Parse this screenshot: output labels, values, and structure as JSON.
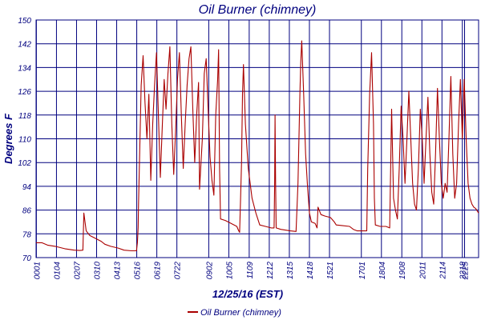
{
  "chart_data": {
    "type": "line",
    "title": "Oil Burner (chimney)",
    "xlabel": "12/25/16 (EST)",
    "ylabel": "Degrees F",
    "ylim": [
      70,
      150
    ],
    "yticks": [
      70,
      78,
      86,
      94,
      102,
      110,
      118,
      126,
      134,
      142,
      150
    ],
    "xticks": [
      "00:01",
      "01:04",
      "02:07",
      "03:10",
      "04:13",
      "05:16",
      "06:19",
      "07:22",
      "09:02",
      "10:05",
      "11:09",
      "12:12",
      "13:15",
      "14:18",
      "15:21",
      "17:01",
      "18:04",
      "19:08",
      "20:11",
      "21:14",
      "22:18",
      "22:25"
    ],
    "tick_labels": [
      "0001",
      "0104",
      "0207",
      "0310",
      "0413",
      "0516",
      "0619",
      "0722",
      "0902",
      "1005",
      "1109",
      "1212",
      "1315",
      "1418",
      "1521",
      "1701",
      "1804",
      "1908",
      "2011",
      "2114",
      "2218",
      "2225"
    ],
    "legend_position": "bottom",
    "grid": true,
    "line_color": "#aa0000",
    "grid_color": "#00007f",
    "series": [
      {
        "name": "Oil Burner (chimney)",
        "points": [
          [
            0.0,
            75
          ],
          [
            0.3,
            75
          ],
          [
            0.6,
            74.2
          ],
          [
            1.0,
            73.8
          ],
          [
            1.5,
            73
          ],
          [
            2.0,
            72.5
          ],
          [
            2.3,
            72.4
          ],
          [
            2.45,
            72.5
          ],
          [
            2.5,
            85
          ],
          [
            2.62,
            79
          ],
          [
            2.8,
            77.5
          ],
          [
            3.1,
            76.5
          ],
          [
            3.4,
            75.5
          ],
          [
            3.6,
            74.5
          ],
          [
            3.9,
            73.8
          ],
          [
            4.3,
            73.2
          ],
          [
            4.6,
            72.5
          ],
          [
            5.0,
            72.3
          ],
          [
            5.25,
            72.3
          ],
          [
            5.3,
            75
          ],
          [
            5.34,
            80
          ],
          [
            5.36,
            88
          ],
          [
            5.4,
            100
          ],
          [
            5.5,
            128
          ],
          [
            5.6,
            138
          ],
          [
            5.7,
            122
          ],
          [
            5.8,
            110
          ],
          [
            5.9,
            125
          ],
          [
            6.0,
            96
          ],
          [
            6.1,
            115
          ],
          [
            6.2,
            128
          ],
          [
            6.3,
            139
          ],
          [
            6.4,
            118
          ],
          [
            6.5,
            97
          ],
          [
            6.6,
            114
          ],
          [
            6.7,
            130
          ],
          [
            6.8,
            120
          ],
          [
            6.9,
            132
          ],
          [
            7.0,
            141
          ],
          [
            7.1,
            115
          ],
          [
            7.2,
            98
          ],
          [
            7.3,
            113
          ],
          [
            7.4,
            130
          ],
          [
            7.5,
            139
          ],
          [
            7.6,
            118
          ],
          [
            7.7,
            100
          ],
          [
            7.8,
            115
          ],
          [
            7.9,
            128
          ],
          [
            8.0,
            137
          ],
          [
            8.1,
            141
          ],
          [
            8.2,
            120
          ],
          [
            8.3,
            102
          ],
          [
            8.4,
            118
          ],
          [
            8.5,
            129
          ],
          [
            8.55,
            93
          ],
          [
            8.7,
            110
          ],
          [
            8.8,
            132
          ],
          [
            8.9,
            137
          ],
          [
            9.0,
            120
          ],
          [
            9.1,
            104
          ],
          [
            9.2,
            96
          ],
          [
            9.3,
            91
          ],
          [
            9.4,
            118
          ],
          [
            9.5,
            130
          ],
          [
            9.55,
            140
          ],
          [
            9.6,
            100
          ],
          [
            9.65,
            83
          ],
          [
            9.9,
            82.5
          ],
          [
            10.2,
            81.5
          ],
          [
            10.5,
            80.5
          ],
          [
            10.6,
            79
          ],
          [
            10.65,
            78.5
          ],
          [
            10.7,
            90
          ],
          [
            10.75,
            102
          ],
          [
            10.8,
            125
          ],
          [
            10.85,
            135
          ],
          [
            10.95,
            115
          ],
          [
            11.1,
            100
          ],
          [
            11.3,
            90
          ],
          [
            11.5,
            85
          ],
          [
            11.7,
            81
          ],
          [
            12.0,
            80.5
          ],
          [
            12.3,
            80
          ],
          [
            12.45,
            80
          ],
          [
            12.48,
            95
          ],
          [
            12.5,
            118
          ],
          [
            12.53,
            95
          ],
          [
            12.56,
            80
          ],
          [
            12.8,
            79.5
          ],
          [
            13.3,
            79
          ],
          [
            13.6,
            78.8
          ],
          [
            13.7,
            95
          ],
          [
            13.8,
            125
          ],
          [
            13.85,
            136
          ],
          [
            13.9,
            143
          ],
          [
            14.0,
            125
          ],
          [
            14.1,
            105
          ],
          [
            14.2,
            94
          ],
          [
            14.3,
            85
          ],
          [
            14.4,
            82
          ],
          [
            14.6,
            81.5
          ],
          [
            14.7,
            80
          ],
          [
            14.75,
            87
          ],
          [
            14.9,
            84.5
          ],
          [
            15.1,
            84
          ],
          [
            15.4,
            83.5
          ],
          [
            15.6,
            82
          ],
          [
            15.7,
            81
          ],
          [
            16.0,
            80.8
          ],
          [
            16.4,
            80.5
          ],
          [
            16.6,
            79.5
          ],
          [
            16.8,
            79
          ],
          [
            17.1,
            79
          ],
          [
            17.3,
            79
          ],
          [
            17.35,
            100
          ],
          [
            17.45,
            125
          ],
          [
            17.55,
            139
          ],
          [
            17.65,
            115
          ],
          [
            17.7,
            90
          ],
          [
            17.75,
            81
          ],
          [
            18.0,
            80.5
          ],
          [
            18.3,
            80.5
          ],
          [
            18.5,
            80
          ],
          [
            18.55,
            100
          ],
          [
            18.6,
            120
          ],
          [
            18.65,
            105
          ],
          [
            18.7,
            90
          ],
          [
            18.8,
            86
          ],
          [
            18.9,
            83
          ],
          [
            19.0,
            100
          ],
          [
            19.1,
            121
          ],
          [
            19.2,
            110
          ],
          [
            19.3,
            95
          ],
          [
            19.4,
            110
          ],
          [
            19.5,
            126
          ],
          [
            19.6,
            110
          ],
          [
            19.7,
            95
          ],
          [
            19.8,
            88
          ],
          [
            19.9,
            86
          ],
          [
            20.0,
            100
          ],
          [
            20.1,
            120
          ],
          [
            20.2,
            110
          ],
          [
            20.3,
            95
          ],
          [
            20.4,
            110
          ],
          [
            20.5,
            124
          ],
          [
            20.6,
            105
          ],
          [
            20.7,
            92
          ],
          [
            20.8,
            88
          ],
          [
            20.9,
            105
          ],
          [
            21.0,
            127
          ],
          [
            21.1,
            110
          ],
          [
            21.2,
            95
          ],
          [
            21.3,
            90
          ],
          [
            21.4,
            95
          ],
          [
            21.5,
            92
          ],
          [
            21.6,
            110
          ],
          [
            21.7,
            131
          ],
          [
            21.8,
            105
          ],
          [
            21.9,
            90
          ],
          [
            22.0,
            95
          ],
          [
            22.1,
            115
          ],
          [
            22.2,
            130
          ],
          [
            22.3,
            110
          ],
          [
            22.4,
            130
          ],
          [
            22.5,
            110
          ],
          [
            22.6,
            95
          ],
          [
            22.7,
            90
          ],
          [
            22.8,
            88
          ],
          [
            22.9,
            87
          ],
          [
            23.0,
            86.5
          ],
          [
            23.15,
            85
          ]
        ]
      }
    ]
  }
}
